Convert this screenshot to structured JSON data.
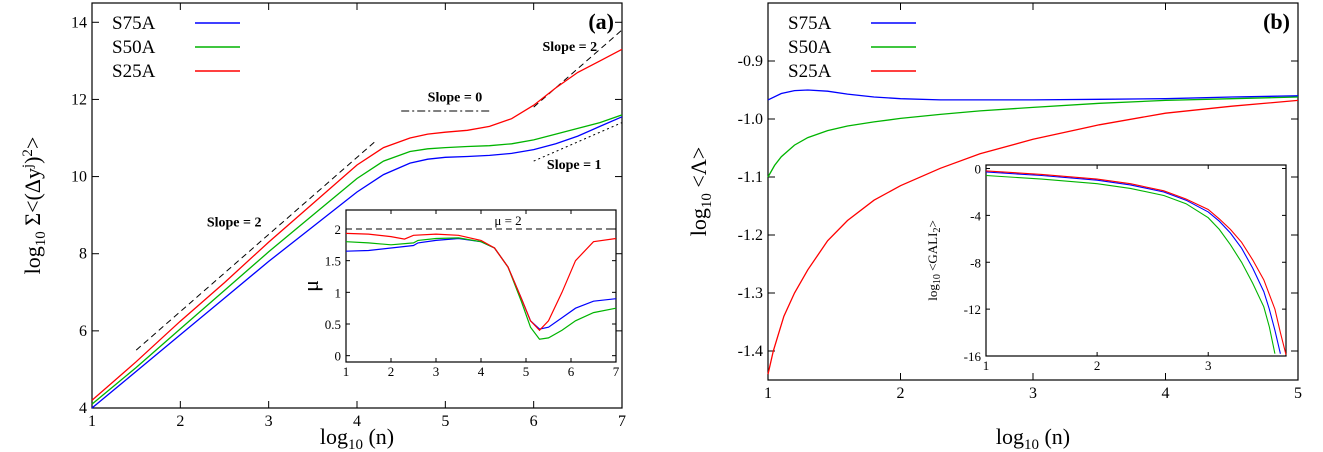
{
  "colors": {
    "S75A": "#0000ff",
    "S50A": "#00b400",
    "S25A": "#ff0000",
    "reference": "#000000"
  },
  "chart_data": [
    {
      "id": "a",
      "type": "line",
      "panel_label": "(a)",
      "xlabel": "log10 (n)",
      "ylabel": "log10 Σ<(Δyj)2>",
      "xlim": [
        1,
        7
      ],
      "ylim": [
        4,
        14.5
      ],
      "xticks": [
        1,
        2,
        3,
        4,
        5,
        6,
        7
      ],
      "yticks": [
        4,
        6,
        8,
        10,
        12,
        14
      ],
      "legend_position": "top-left",
      "series": [
        {
          "name": "S75A",
          "color_key": "S75A",
          "x": [
            1,
            1.5,
            2,
            2.5,
            3,
            3.5,
            4,
            4.3,
            4.6,
            4.8,
            5,
            5.25,
            5.5,
            5.75,
            6,
            6.25,
            6.5,
            6.75,
            7
          ],
          "y": [
            4.0,
            4.95,
            5.9,
            6.85,
            7.8,
            8.7,
            9.6,
            10.05,
            10.35,
            10.45,
            10.5,
            10.52,
            10.55,
            10.6,
            10.7,
            10.85,
            11.05,
            11.3,
            11.55
          ]
        },
        {
          "name": "S50A",
          "color_key": "S50A",
          "x": [
            1,
            1.5,
            2,
            2.5,
            3,
            3.5,
            4,
            4.3,
            4.6,
            4.8,
            5,
            5.25,
            5.5,
            5.75,
            6,
            6.25,
            6.5,
            6.75,
            7
          ],
          "y": [
            4.1,
            5.05,
            6.05,
            7.05,
            8.05,
            9.0,
            9.95,
            10.4,
            10.65,
            10.72,
            10.75,
            10.78,
            10.8,
            10.85,
            10.95,
            11.1,
            11.25,
            11.4,
            11.6
          ]
        },
        {
          "name": "S25A",
          "color_key": "S25A",
          "x": [
            1,
            1.5,
            2,
            2.5,
            3,
            3.5,
            4,
            4.3,
            4.6,
            4.8,
            5,
            5.25,
            5.5,
            5.75,
            6,
            6.25,
            6.5,
            6.75,
            7
          ],
          "y": [
            4.2,
            5.2,
            6.25,
            7.25,
            8.3,
            9.3,
            10.3,
            10.75,
            11.0,
            11.1,
            11.15,
            11.2,
            11.3,
            11.5,
            11.85,
            12.3,
            12.7,
            13.0,
            13.3
          ]
        }
      ],
      "reference_lines": [
        {
          "style": "dashed",
          "x": [
            1.5,
            4.2
          ],
          "y": [
            5.5,
            10.9
          ]
        },
        {
          "style": "dashdot",
          "x": [
            4.5,
            5.5
          ],
          "y": [
            11.7,
            11.7
          ]
        },
        {
          "style": "dashed",
          "x": [
            6.0,
            7.0
          ],
          "y": [
            11.8,
            13.8
          ]
        },
        {
          "style": "dotted",
          "x": [
            6.0,
            7.0
          ],
          "y": [
            10.4,
            11.4
          ]
        }
      ],
      "annotations": [
        {
          "text": "Slope = 2",
          "x": 2.3,
          "y": 8.7
        },
        {
          "text": "Slope = 0",
          "x": 4.8,
          "y": 11.95
        },
        {
          "text": "Slope = 2",
          "x": 6.1,
          "y": 13.25
        },
        {
          "text": "Slope = 1",
          "x": 6.15,
          "y": 10.2
        }
      ],
      "inset": {
        "type": "line",
        "ylabel": "μ",
        "xlim": [
          1,
          7
        ],
        "ylim": [
          -0.1,
          2.3
        ],
        "xticks": [
          1,
          2,
          3,
          4,
          5,
          6,
          7
        ],
        "yticks": [
          0,
          0.5,
          1,
          1.5,
          2
        ],
        "ytick_labels": [
          "0",
          "0.5",
          "1",
          "1.5",
          "2"
        ],
        "series": [
          {
            "name": "S75A",
            "color_key": "S75A",
            "x": [
              1,
              1.5,
              2,
              2.5,
              2.6,
              3,
              3.5,
              4,
              4.3,
              4.6,
              4.9,
              5.1,
              5.3,
              5.5,
              5.8,
              6.1,
              6.5,
              7
            ],
            "y": [
              1.65,
              1.66,
              1.7,
              1.74,
              1.78,
              1.82,
              1.85,
              1.8,
              1.7,
              1.4,
              0.9,
              0.55,
              0.42,
              0.45,
              0.6,
              0.75,
              0.86,
              0.9
            ]
          },
          {
            "name": "S50A",
            "color_key": "S50A",
            "x": [
              1,
              1.5,
              2,
              2.5,
              2.6,
              3,
              3.5,
              4,
              4.3,
              4.6,
              4.9,
              5.1,
              5.3,
              5.5,
              5.8,
              6.1,
              6.5,
              7
            ],
            "y": [
              1.8,
              1.78,
              1.75,
              1.78,
              1.82,
              1.85,
              1.86,
              1.8,
              1.7,
              1.4,
              0.85,
              0.45,
              0.26,
              0.28,
              0.4,
              0.55,
              0.68,
              0.75
            ]
          },
          {
            "name": "S25A",
            "color_key": "S25A",
            "x": [
              1,
              1.5,
              2,
              2.3,
              2.5,
              3,
              3.5,
              4,
              4.3,
              4.6,
              4.9,
              5.1,
              5.3,
              5.5,
              5.8,
              6.1,
              6.5,
              7
            ],
            "y": [
              1.93,
              1.92,
              1.88,
              1.84,
              1.9,
              1.92,
              1.9,
              1.82,
              1.7,
              1.4,
              0.9,
              0.55,
              0.4,
              0.55,
              1.0,
              1.5,
              1.8,
              1.85
            ]
          }
        ],
        "reference_lines": [
          {
            "style": "dashed",
            "x": [
              1,
              7
            ],
            "y": [
              2,
              2
            ]
          }
        ],
        "annotations": [
          {
            "text": "μ = 2",
            "x": 4.6,
            "y": 2.13
          }
        ]
      }
    },
    {
      "id": "b",
      "type": "line",
      "panel_label": "(b)",
      "xlabel": "log10 (n)",
      "ylabel": "log10 <Λ>",
      "xlim": [
        1,
        5
      ],
      "ylim": [
        -1.45,
        -0.8
      ],
      "xticks": [
        1,
        2,
        3,
        4,
        5
      ],
      "yticks": [
        -1.4,
        -1.3,
        -1.2,
        -1.1,
        -1.0,
        -0.9
      ],
      "ytick_labels": [
        "-1.4",
        "-1.3",
        "-1.2",
        "-1.1",
        "-1.0",
        "-0.9"
      ],
      "legend_position": "top-left",
      "series": [
        {
          "name": "S75A",
          "color_key": "S75A",
          "x": [
            1,
            1.1,
            1.2,
            1.3,
            1.45,
            1.6,
            1.8,
            2,
            2.3,
            2.6,
            3,
            3.5,
            4,
            4.5,
            5
          ],
          "y": [
            -0.967,
            -0.956,
            -0.951,
            -0.95,
            -0.952,
            -0.957,
            -0.962,
            -0.965,
            -0.967,
            -0.967,
            -0.967,
            -0.966,
            -0.965,
            -0.962,
            -0.96
          ]
        },
        {
          "name": "S50A",
          "color_key": "S50A",
          "x": [
            1,
            1.05,
            1.1,
            1.2,
            1.3,
            1.45,
            1.6,
            1.8,
            2,
            2.3,
            2.6,
            3,
            3.5,
            4,
            4.5,
            5
          ],
          "y": [
            -1.1,
            -1.08,
            -1.065,
            -1.045,
            -1.032,
            -1.02,
            -1.012,
            -1.005,
            -0.999,
            -0.992,
            -0.986,
            -0.98,
            -0.973,
            -0.968,
            -0.965,
            -0.962
          ]
        },
        {
          "name": "S25A",
          "color_key": "S25A",
          "x": [
            1,
            1.04,
            1.08,
            1.12,
            1.2,
            1.3,
            1.45,
            1.6,
            1.8,
            2,
            2.3,
            2.6,
            3,
            3.5,
            4,
            4.5,
            5
          ],
          "y": [
            -1.44,
            -1.4,
            -1.37,
            -1.34,
            -1.3,
            -1.26,
            -1.21,
            -1.175,
            -1.14,
            -1.115,
            -1.085,
            -1.06,
            -1.035,
            -1.01,
            -0.99,
            -0.978,
            -0.968
          ]
        }
      ],
      "inset": {
        "type": "line",
        "ylabel": "log10 <GALI2>",
        "xlim": [
          1,
          3.7
        ],
        "ylim": [
          -16,
          0.3
        ],
        "xticks": [
          1,
          2,
          3
        ],
        "yticks": [
          0,
          -4,
          -8,
          -12,
          -16
        ],
        "ytick_labels": [
          "0",
          "-4",
          "-8",
          "-12",
          "-16"
        ],
        "series": [
          {
            "name": "S75A",
            "color_key": "S75A",
            "x": [
              1,
              1.5,
              2,
              2.3,
              2.6,
              2.8,
              3,
              3.1,
              3.2,
              3.3,
              3.4,
              3.5,
              3.55,
              3.6,
              3.65
            ],
            "y": [
              -0.3,
              -0.6,
              -1.0,
              -1.4,
              -2.0,
              -2.7,
              -3.7,
              -4.5,
              -5.5,
              -6.8,
              -8.5,
              -10.5,
              -12,
              -13.8,
              -15.8
            ]
          },
          {
            "name": "S50A",
            "color_key": "S50A",
            "x": [
              1,
              1.5,
              2,
              2.3,
              2.6,
              2.8,
              3,
              3.1,
              3.2,
              3.3,
              3.4,
              3.5,
              3.55,
              3.6
            ],
            "y": [
              -0.6,
              -0.9,
              -1.3,
              -1.7,
              -2.3,
              -3.0,
              -4.2,
              -5.2,
              -6.5,
              -8.0,
              -9.8,
              -11.8,
              -13.5,
              -15.8
            ]
          },
          {
            "name": "S25A",
            "color_key": "S25A",
            "x": [
              1,
              1.5,
              2,
              2.3,
              2.6,
              2.8,
              3,
              3.1,
              3.2,
              3.3,
              3.4,
              3.5,
              3.6,
              3.65,
              3.7
            ],
            "y": [
              -0.2,
              -0.5,
              -0.9,
              -1.3,
              -1.9,
              -2.6,
              -3.5,
              -4.3,
              -5.2,
              -6.3,
              -7.8,
              -9.5,
              -12,
              -14,
              -15.9
            ]
          }
        ]
      }
    }
  ]
}
